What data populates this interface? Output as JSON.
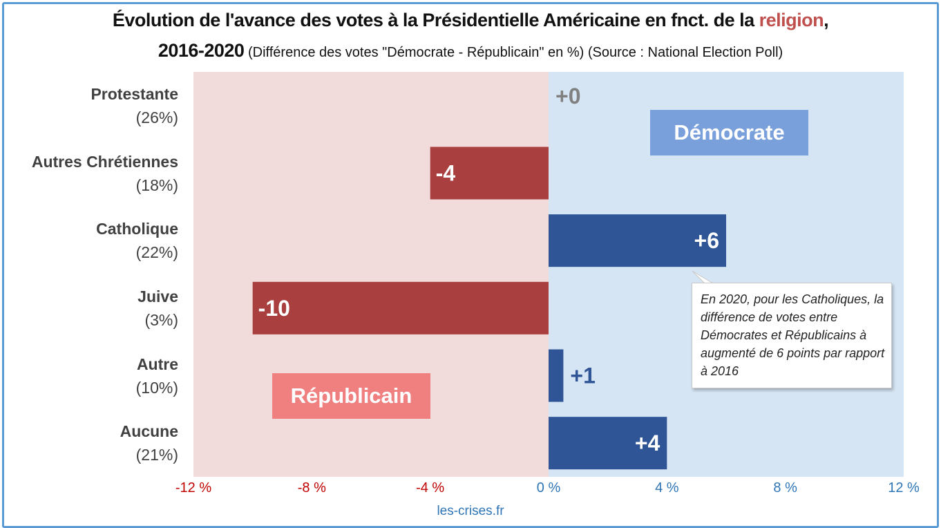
{
  "title": {
    "line1_prefix": "Évolution de l'avance des votes à la Présidentielle Américaine en fnct. de la ",
    "line1_accent": "religion",
    "line1_suffix": ",",
    "line2_year": "2016-2020",
    "line2_subtitle": " (Différence des votes \"Démocrate - Républicain\" en %) (Source : National Election Poll)"
  },
  "colors": {
    "republican_bar": "#a93f3f",
    "democrat_bar": "#2f5597",
    "republican_bg": "#f2dcdb",
    "democrat_bg": "#d6e5f4",
    "republican_label": "#f08080",
    "democrat_label": "#7aa0dc",
    "zero_label": "#808080",
    "neg_tick": "#c00000",
    "pos_tick": "#2e75b6"
  },
  "chart_data": {
    "type": "bar",
    "orientation": "horizontal",
    "categories": [
      {
        "name": "Protestante",
        "share": "(26%)"
      },
      {
        "name": "Autres Chrétiennes",
        "share": "(18%)"
      },
      {
        "name": "Catholique",
        "share": "(22%)"
      },
      {
        "name": "Juive",
        "share": "(3%)"
      },
      {
        "name": "Autre",
        "share": "(10%)"
      },
      {
        "name": "Aucune",
        "share": "(21%)"
      }
    ],
    "values": [
      0,
      -4,
      6,
      -10,
      0.5,
      4
    ],
    "data_labels": [
      "+0",
      "-4",
      "+6",
      "-10",
      "+1",
      "+4"
    ],
    "xlim": [
      -12,
      12
    ],
    "x_ticks": [
      -12,
      -8,
      -4,
      0,
      4,
      8,
      12
    ],
    "x_tick_labels": [
      "-12 %",
      "-8 %",
      "-4 %",
      "0 %",
      "4 %",
      "8 %",
      "12 %"
    ],
    "grid": false,
    "region_labels": {
      "negative": "Républicain",
      "positive": "Démocrate"
    },
    "annotation": "En 2020, pour les Catholiques, la différence de votes entre Démocrates et Républicains à augmenté de 6 points par rapport à 2016"
  },
  "source": "les-crises.fr"
}
